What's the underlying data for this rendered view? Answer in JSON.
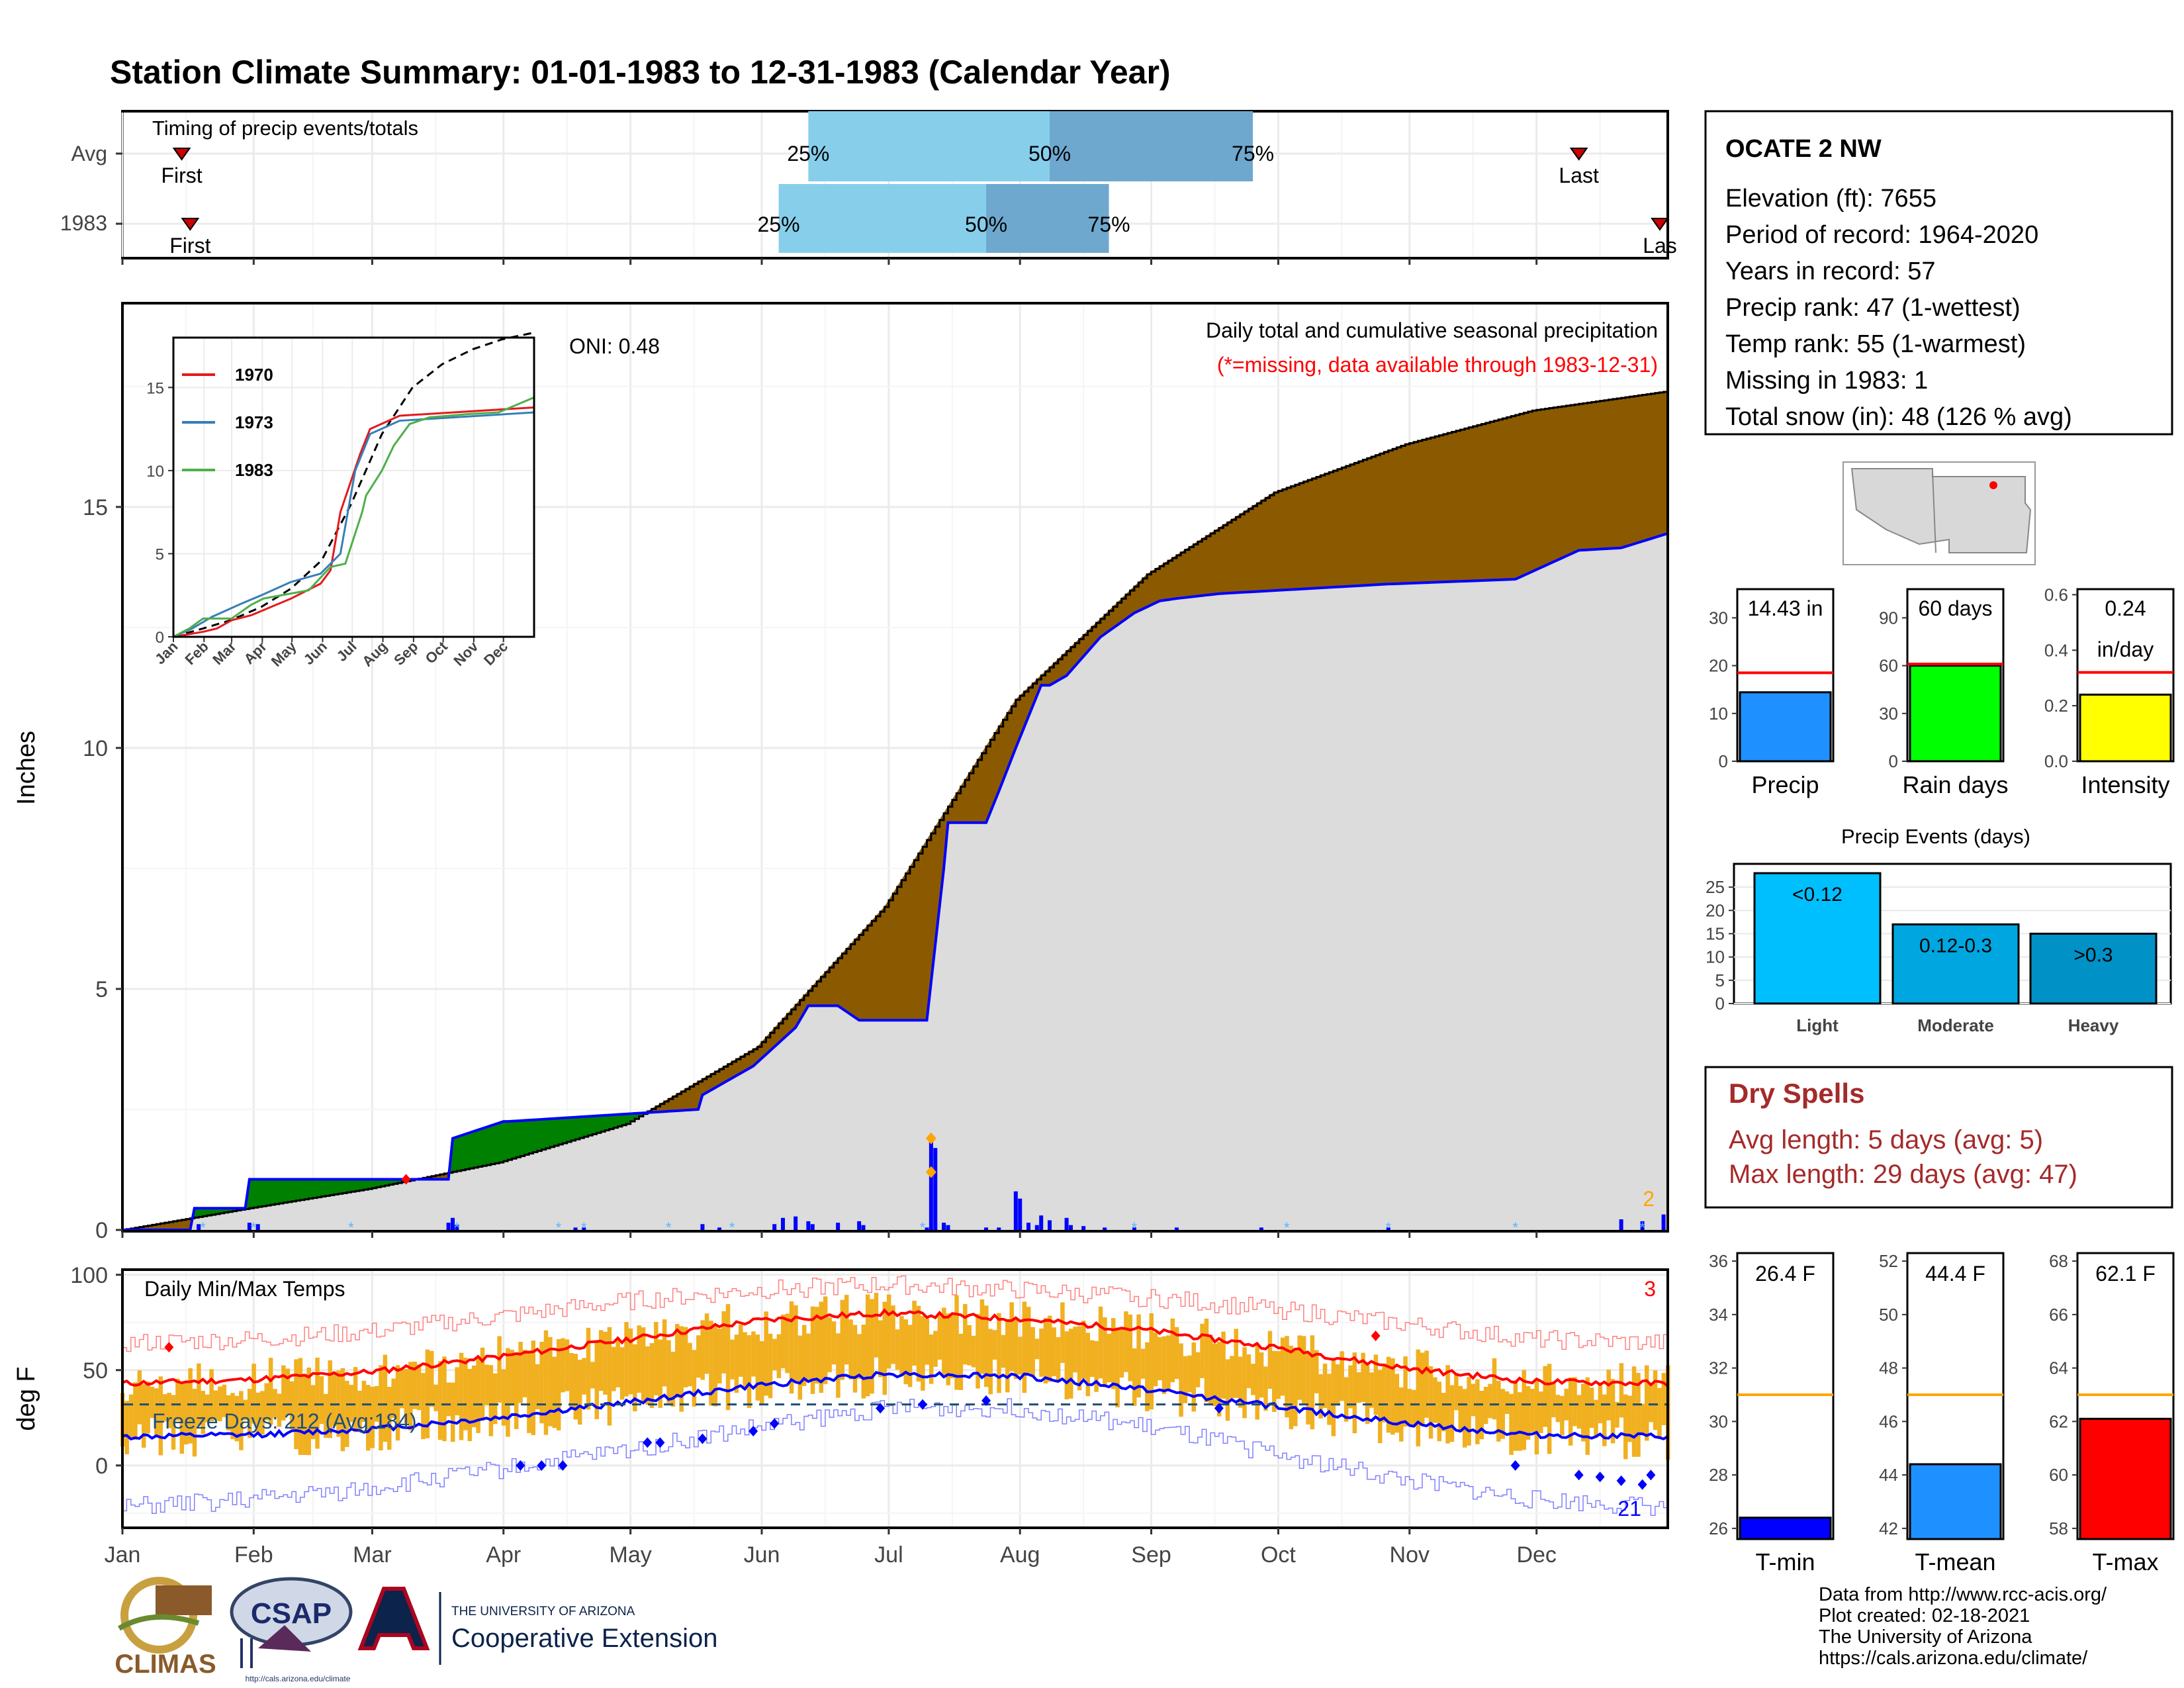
{
  "page": {
    "title": "Station Climate Summary: 01-01-1983 to 12-31-1983 (Calendar Year)",
    "colors": {
      "title": "#000080",
      "cum_avg_fill": "#dcdcdc",
      "surplus": "#008000",
      "deficit": "#8b5a00",
      "cum_line": "#0000ff"
    }
  },
  "timing": {
    "label": "Timing of precip events/totals",
    "rows": [
      {
        "name": "Avg",
        "first_day": 15,
        "last_day": 345,
        "q25": 163,
        "q50": 220,
        "q75": 268,
        "first_label": "First",
        "last_label": "Last",
        "q25_label": "25%",
        "q50_label": "50%",
        "q75_label": "75%"
      },
      {
        "name": "1983",
        "first_day": 17,
        "last_day": 366,
        "q25": 156,
        "q50": 205,
        "q75": 234,
        "first_label": "First",
        "last_label": "Las",
        "q25_label": "25%",
        "q50_label": "50%",
        "q75_label": "75%"
      }
    ]
  },
  "precip": {
    "ylabel": "Inches",
    "yticks": [
      0,
      5,
      10,
      15
    ],
    "ylim": [
      0,
      19.2
    ],
    "oni": "ONI: 0.48",
    "label1": "Daily total and cumulative seasonal precipitation",
    "label2": "(*=missing, data available through 1983-12-31)",
    "corner_count": "2",
    "month_ticks": [
      "Jan",
      "Feb",
      "Mar",
      "Apr",
      "May",
      "Jun",
      "Jul",
      "Aug",
      "Sep",
      "Oct",
      "Nov",
      "Dec"
    ],
    "series": [
      {
        "name": "avg_cumulative",
        "x": [
          1,
          31,
          59,
          90,
          120,
          151,
          181,
          212,
          243,
          273,
          304,
          334,
          366
        ],
        "values": [
          0,
          0.45,
          0.85,
          1.4,
          2.2,
          3.8,
          6.7,
          11.0,
          13.6,
          15.3,
          16.3,
          17.0,
          17.4
        ]
      },
      {
        "name": "1983_cumulative",
        "x": [
          1,
          17,
          18,
          30,
          31,
          60,
          78,
          79,
          91,
          92,
          137,
          138,
          150,
          160,
          163,
          170,
          175,
          191,
          195,
          196,
          205,
          208,
          212,
          218,
          220,
          224,
          228,
          232,
          236,
          240,
          246,
          250,
          260,
          280,
          300,
          330,
          345,
          355,
          366
        ],
        "values": [
          0,
          0,
          0.45,
          0.45,
          1.05,
          1.05,
          1.05,
          1.9,
          2.25,
          2.25,
          2.5,
          2.8,
          3.4,
          4.2,
          4.65,
          4.65,
          4.35,
          4.35,
          7.5,
          8.45,
          8.45,
          9.1,
          10.0,
          11.3,
          11.3,
          11.5,
          11.9,
          12.3,
          12.55,
          12.8,
          13.05,
          13.1,
          13.2,
          13.3,
          13.4,
          13.5,
          14.1,
          14.15,
          14.45
        ]
      },
      {
        "name": "daily",
        "x": [
          19,
          31,
          33,
          78,
          79,
          80,
          108,
          110,
          138,
          142,
          155,
          157,
          160,
          163,
          164,
          170,
          175,
          176,
          191,
          192,
          193,
          195,
          196,
          205,
          208,
          212,
          213,
          215,
          217,
          218,
          220,
          224,
          225,
          228,
          233,
          240,
          250,
          270,
          300,
          355,
          360,
          365
        ],
        "values": [
          0.12,
          0.15,
          0.12,
          0.15,
          0.25,
          0.1,
          0.05,
          0.05,
          0.12,
          0.05,
          0.12,
          0.25,
          0.28,
          0.18,
          0.12,
          0.15,
          0.18,
          0.1,
          0.05,
          1.9,
          1.7,
          0.15,
          0.1,
          0.05,
          0.05,
          0.8,
          0.65,
          0.15,
          0.1,
          0.3,
          0.2,
          0.25,
          0.1,
          0.08,
          0.05,
          0.05,
          0.05,
          0.05,
          0.05,
          0.22,
          0.18,
          0.32
        ]
      }
    ]
  },
  "inset": {
    "yticks": [
      0,
      5,
      10,
      15
    ],
    "ylim": [
      0,
      18
    ],
    "month_ticks": [
      "Jan",
      "Feb",
      "Mar",
      "Apr",
      "May",
      "Jun",
      "Jul",
      "Aug",
      "Sep",
      "Oct",
      "Nov",
      "Dec"
    ],
    "legend": [
      {
        "name": "1970",
        "color": "#e41a1c"
      },
      {
        "name": "1973",
        "color": "#377eb8"
      },
      {
        "name": "1983",
        "color": "#4daf4a"
      }
    ],
    "series": [
      {
        "name": "avg",
        "color": "#000000",
        "x": [
          1,
          31,
          59,
          90,
          120,
          151,
          181,
          212,
          243,
          273,
          304,
          334,
          366
        ],
        "values": [
          0,
          0.5,
          1.0,
          1.8,
          2.9,
          4.6,
          8.0,
          12.2,
          15.0,
          16.4,
          17.3,
          17.9,
          18.3
        ]
      },
      {
        "name": "1970",
        "color": "#e41a1c",
        "x": [
          1,
          31,
          45,
          60,
          80,
          100,
          120,
          150,
          160,
          170,
          190,
          200,
          230,
          366
        ],
        "values": [
          0,
          0.3,
          0.5,
          1.0,
          1.3,
          1.8,
          2.3,
          3.2,
          4.0,
          7.5,
          11.0,
          12.5,
          13.3,
          13.8
        ]
      },
      {
        "name": "1973",
        "color": "#377eb8",
        "x": [
          1,
          20,
          40,
          70,
          90,
          120,
          150,
          170,
          185,
          200,
          230,
          366
        ],
        "values": [
          0,
          0.5,
          1.2,
          2.0,
          2.5,
          3.3,
          3.8,
          5.0,
          10.0,
          12.2,
          13.0,
          13.5
        ]
      },
      {
        "name": "1983",
        "color": "#4daf4a",
        "x": [
          1,
          17,
          31,
          60,
          79,
          92,
          138,
          160,
          175,
          192,
          196,
          212,
          224,
          240,
          260,
          300,
          330,
          366
        ],
        "values": [
          0,
          0.5,
          1.1,
          1.1,
          1.9,
          2.3,
          2.8,
          4.2,
          4.4,
          7.5,
          8.5,
          10.0,
          11.5,
          12.8,
          13.2,
          13.4,
          13.5,
          14.4
        ]
      }
    ]
  },
  "temps": {
    "ylabel": "deg F",
    "label": "Daily Min/Max Temps",
    "freeze_label": "Freeze Days: 212 (Avg:184)",
    "count_top": "3",
    "count_bottom": "21",
    "yticks": [
      0,
      50,
      100
    ],
    "ylim": [
      -32,
      102
    ],
    "freeze_line": 32,
    "month_ticks": [
      "Jan",
      "Feb",
      "Mar",
      "Apr",
      "May",
      "Jun",
      "Jul",
      "Aug",
      "Sep",
      "Oct",
      "Nov",
      "Dec"
    ],
    "series": [
      {
        "name": "avg_max",
        "x": [
          1,
          31,
          59,
          90,
          120,
          151,
          181,
          212,
          243,
          273,
          304,
          334,
          366
        ],
        "values": [
          43,
          45,
          49,
          57,
          66,
          76,
          80,
          77,
          71,
          62,
          51,
          44,
          43
        ]
      },
      {
        "name": "avg_min",
        "x": [
          1,
          31,
          59,
          90,
          120,
          151,
          181,
          212,
          243,
          273,
          304,
          334,
          366
        ],
        "values": [
          15,
          16,
          19,
          25,
          33,
          42,
          48,
          47,
          40,
          31,
          22,
          16,
          15
        ]
      },
      {
        "name": "record_max",
        "x": [
          1,
          31,
          59,
          90,
          120,
          151,
          181,
          212,
          243,
          273,
          304,
          334,
          366
        ],
        "values": [
          64,
          66,
          70,
          78,
          86,
          92,
          95,
          92,
          88,
          82,
          74,
          66,
          64
        ]
      },
      {
        "name": "record_min",
        "x": [
          1,
          31,
          59,
          90,
          120,
          151,
          181,
          212,
          243,
          273,
          304,
          334,
          366
        ],
        "values": [
          -22,
          -18,
          -12,
          -2,
          8,
          20,
          30,
          30,
          20,
          6,
          -8,
          -18,
          -22
        ]
      }
    ]
  },
  "station": {
    "name": "OCATE 2 NW",
    "lines": [
      "Elevation (ft): 7655",
      "Period of record: 1964-2020",
      "Years in record: 57",
      "Precip rank: 47 (1-wettest)",
      "Temp rank: 55 (1-warmest)",
      "Missing in 1983: 1",
      "Total snow (in): 48 (126 % avg)"
    ]
  },
  "minis": [
    {
      "label": "Precip",
      "value_text": "14.43 in",
      "value": 14.43,
      "avg": 18.5,
      "ymax": 36,
      "yticks": [
        0,
        10,
        20,
        30
      ],
      "color": "#1e90ff"
    },
    {
      "label": "Rain days",
      "value_text": "60 days",
      "value": 60,
      "avg": 61,
      "ymax": 108,
      "yticks": [
        0,
        30,
        60,
        90
      ],
      "color": "#00ff00"
    },
    {
      "label": "Intensity",
      "value_text": "0.24",
      "value_text2": "in/day",
      "value": 0.24,
      "avg": 0.32,
      "ymax": 0.62,
      "yticks": [
        0.0,
        0.2,
        0.4,
        0.6
      ],
      "color": "#ffff00"
    }
  ],
  "events": {
    "title": "Precip Events (days)",
    "yticks": [
      0,
      5,
      10,
      15,
      20,
      25
    ],
    "ymax": 30,
    "bars": [
      {
        "label": "Light",
        "name": "<0.12",
        "value": 28,
        "color": "#00bfff"
      },
      {
        "label": "Moderate",
        "name": "0.12-0.3",
        "value": 17,
        "color": "#00a6e0"
      },
      {
        "label": "Heavy",
        "name": ">0.3",
        "value": 15,
        "color": "#0091c6"
      }
    ]
  },
  "dry_spells": {
    "title": "Dry Spells",
    "line1": "Avg length: 5 days (avg: 5)",
    "line2": "Max length: 29 days (avg: 47)",
    "color": "#a52a2a"
  },
  "temp_minis": [
    {
      "label": "T-min",
      "value_text": "26.4 F",
      "value": 26.4,
      "avg": 31,
      "ymin": 25.6,
      "ymax": 36.3,
      "yticks": [
        26,
        28,
        30,
        32,
        34,
        36
      ],
      "color": "#0000ff"
    },
    {
      "label": "T-mean",
      "value_text": "44.4 F",
      "value": 44.4,
      "avg": 47,
      "ymin": 41.6,
      "ymax": 52.3,
      "yticks": [
        42,
        44,
        46,
        48,
        50,
        52
      ],
      "color": "#1e90ff"
    },
    {
      "label": "T-max",
      "value_text": "62.1 F",
      "value": 62.1,
      "avg": 63,
      "ymin": 57.6,
      "ymax": 68.3,
      "yticks": [
        58,
        60,
        62,
        64,
        66,
        68
      ],
      "color": "#ff0000"
    }
  ],
  "footer": {
    "lines": [
      "Data from http://www.rcc-acis.org/",
      "Plot created: 02-18-2021",
      "The University of Arizona",
      "https://cals.arizona.edu/climate/"
    ],
    "logo1": "CLIMAS",
    "logo2": "CSAP",
    "logo2_url": "http://cals.arizona.edu/climate",
    "logo3_top": "THE UNIVERSITY OF ARIZONA",
    "logo3_main": "Cooperative Extension"
  }
}
